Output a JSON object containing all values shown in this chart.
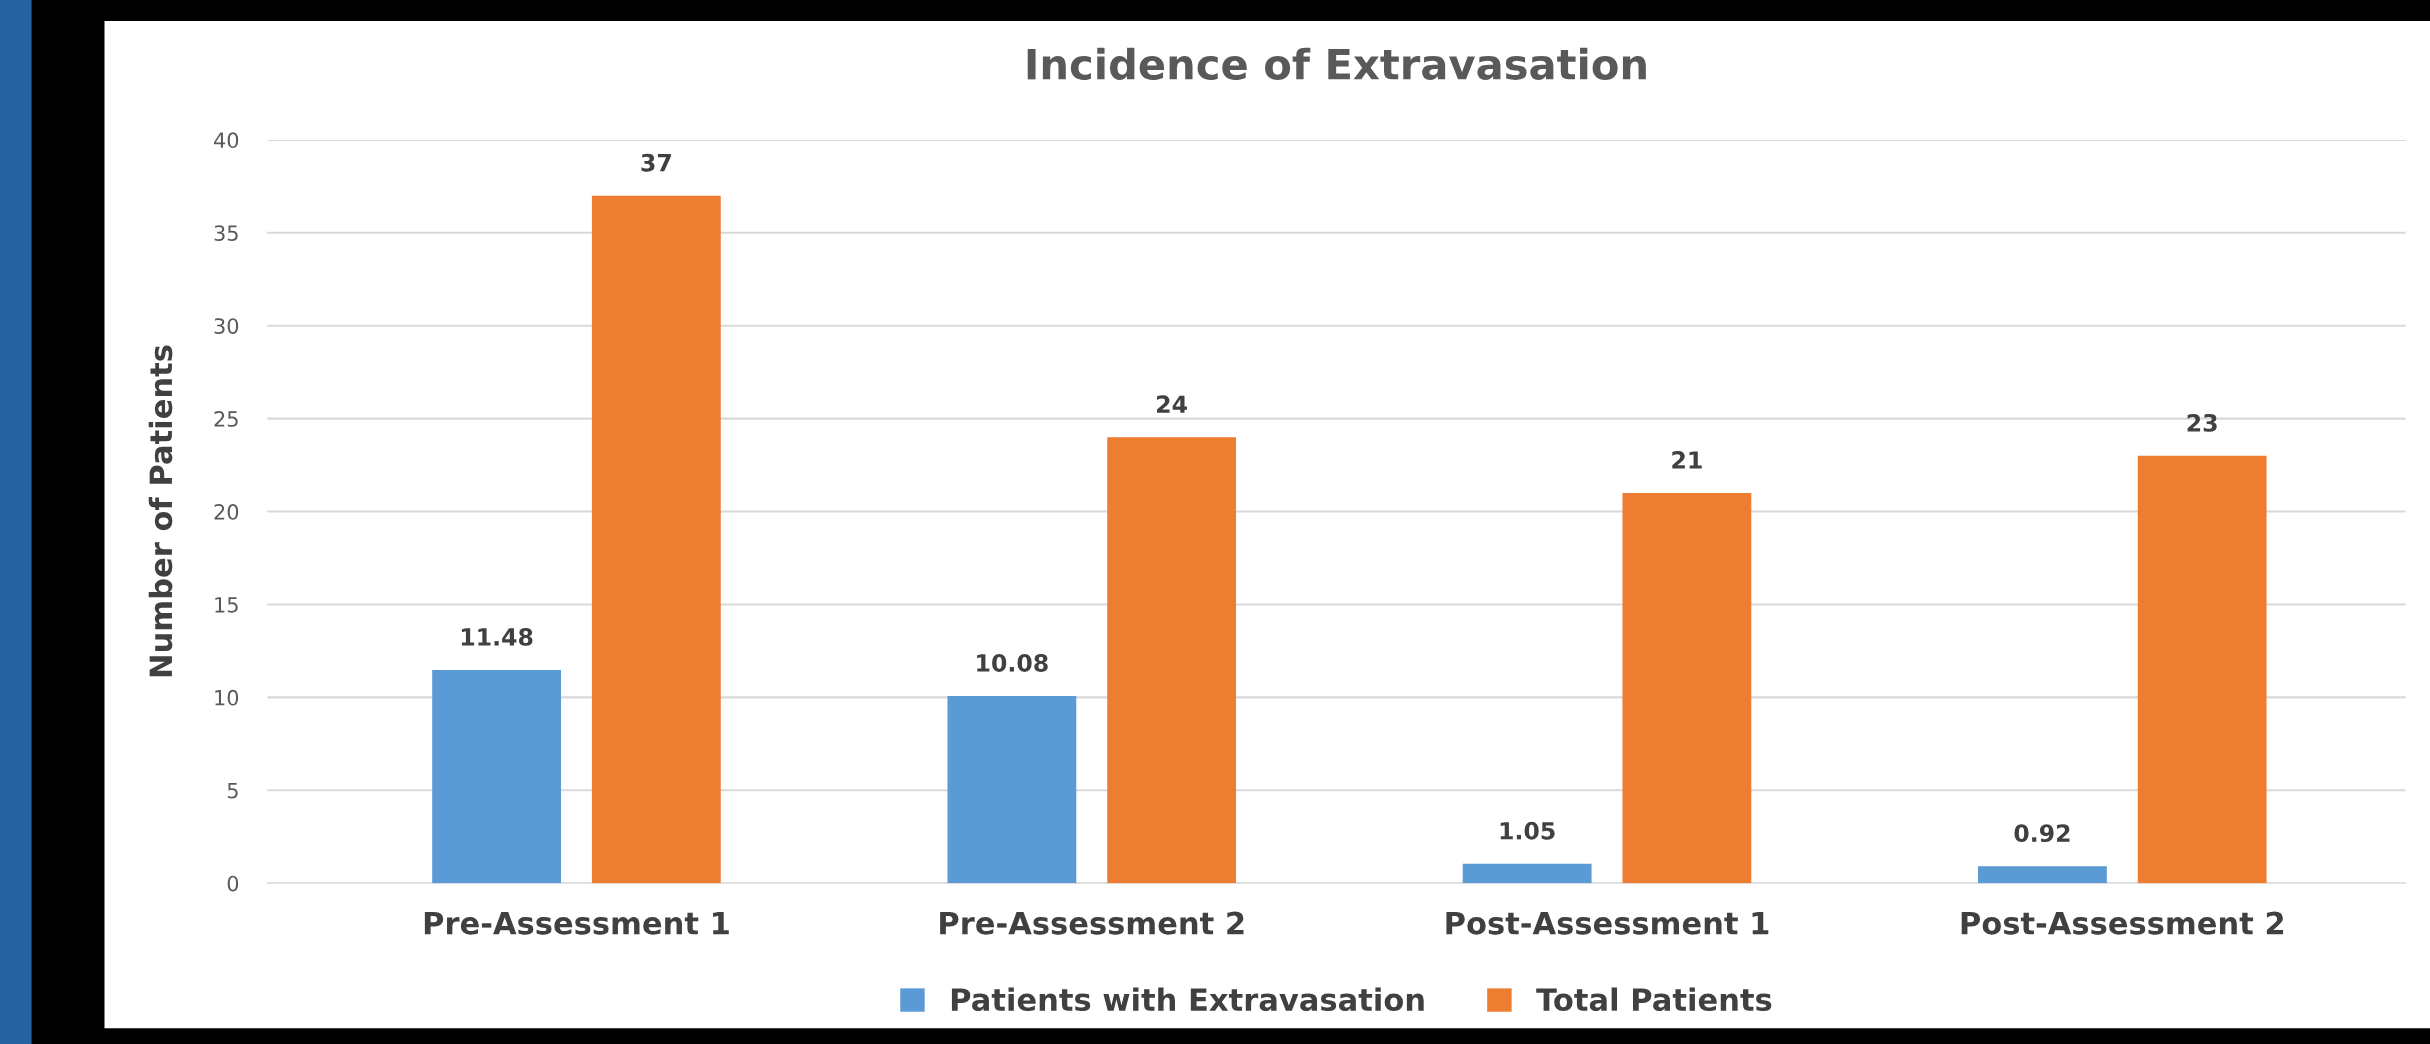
{
  "chart_data": {
    "type": "bar",
    "title": "Incidence of Extravasation",
    "ylabel": "Number of Patients",
    "categories": [
      "Pre-Assessment 1",
      "Pre-Assessment 2",
      "Post-Assessment 1",
      "Post-Assessment 2"
    ],
    "series": [
      {
        "name": "Patients with Extravasation",
        "color": "#5b9bd5",
        "values": [
          11.48,
          10.08,
          1.05,
          0.92
        ]
      },
      {
        "name": "Total Patients",
        "color": "#ed7d31",
        "values": [
          37,
          24,
          21,
          23
        ]
      }
    ],
    "ylim": [
      0,
      40
    ],
    "yticks": [
      0,
      5,
      10,
      15,
      20,
      25,
      30,
      35,
      40
    ],
    "grid": "y",
    "legend": "bottom",
    "data_labels": true
  }
}
